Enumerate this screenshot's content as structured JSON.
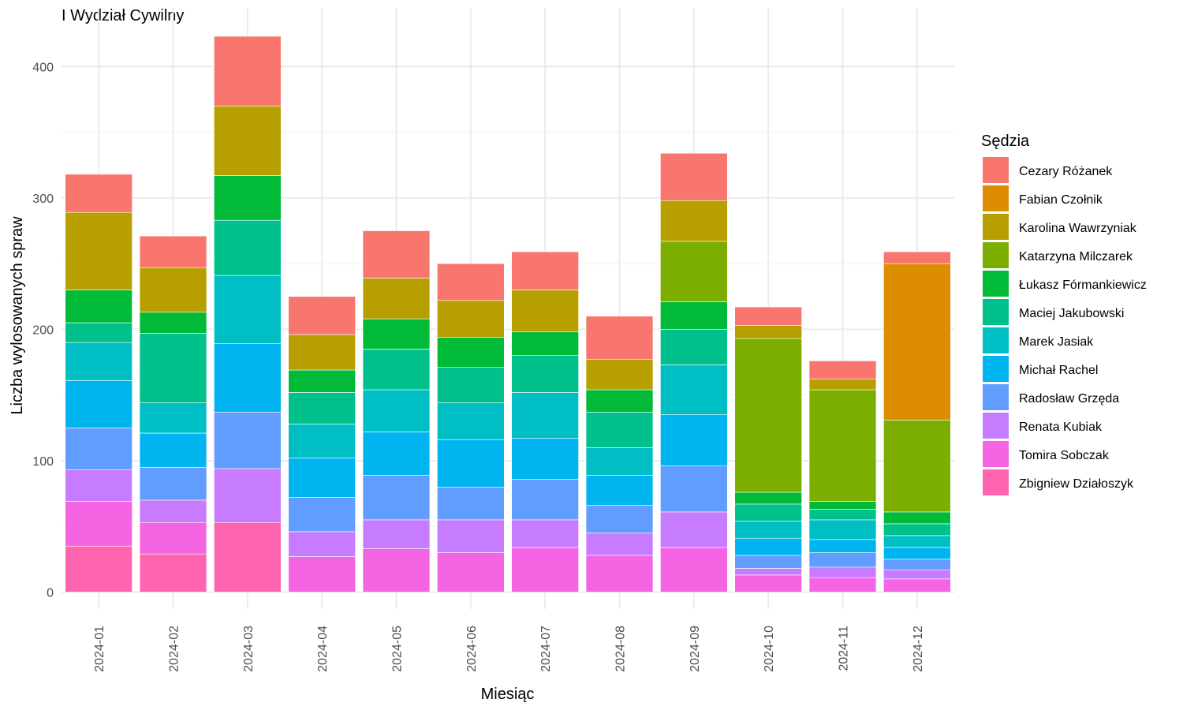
{
  "chart_data": {
    "type": "bar",
    "stacked": true,
    "title": "I Wydział Cywilny",
    "xlabel": "Miesiąc",
    "ylabel": "Liczba wylosowanych spraw",
    "ylim": [
      0,
      430
    ],
    "yticks": [
      0,
      100,
      200,
      300,
      400
    ],
    "grid": true,
    "legend_title": "Sędzia",
    "legend_position": "right",
    "categories": [
      "2024-01",
      "2024-02",
      "2024-03",
      "2024-04",
      "2024-05",
      "2024-06",
      "2024-07",
      "2024-08",
      "2024-09",
      "2024-10",
      "2024-11",
      "2024-12"
    ],
    "series": [
      {
        "name": "Cezary Różanek",
        "color": "#F8766D",
        "values": [
          29,
          24,
          53,
          29,
          36,
          28,
          29,
          33,
          36,
          14,
          14,
          9
        ]
      },
      {
        "name": "Fabian Czołnik",
        "color": "#DE8C00",
        "values": [
          0,
          0,
          0,
          0,
          0,
          0,
          0,
          0,
          0,
          0,
          0,
          119
        ]
      },
      {
        "name": "Karolina Wawrzyniak",
        "color": "#B79F00",
        "values": [
          59,
          34,
          53,
          27,
          31,
          28,
          32,
          23,
          31,
          10,
          8,
          0
        ]
      },
      {
        "name": "Katarzyna Milczarek",
        "color": "#7CAE00",
        "values": [
          0,
          0,
          0,
          0,
          0,
          0,
          0,
          0,
          46,
          117,
          85,
          70
        ]
      },
      {
        "name": "Łukasz Fórmankiewicz",
        "color": "#00BA38",
        "values": [
          25,
          16,
          34,
          17,
          23,
          23,
          18,
          17,
          21,
          9,
          6,
          9
        ]
      },
      {
        "name": "Maciej Jakubowski",
        "color": "#00C08B",
        "values": [
          15,
          53,
          42,
          24,
          31,
          27,
          28,
          27,
          27,
          13,
          8,
          9
        ]
      },
      {
        "name": "Marek Jasiak",
        "color": "#00BFC4",
        "values": [
          29,
          23,
          52,
          26,
          32,
          28,
          35,
          21,
          38,
          13,
          15,
          9
        ]
      },
      {
        "name": "Michał Rachel",
        "color": "#00B4F0",
        "values": [
          36,
          26,
          52,
          30,
          33,
          36,
          31,
          23,
          39,
          13,
          10,
          9
        ]
      },
      {
        "name": "Radosław Grzęda",
        "color": "#619CFF",
        "values": [
          32,
          25,
          43,
          26,
          34,
          25,
          31,
          21,
          35,
          10,
          11,
          8
        ]
      },
      {
        "name": "Renata Kubiak",
        "color": "#C77CFF",
        "values": [
          24,
          17,
          41,
          19,
          22,
          25,
          21,
          17,
          27,
          5,
          8,
          7
        ]
      },
      {
        "name": "Tomira Sobczak",
        "color": "#F564E3",
        "values": [
          34,
          24,
          0,
          27,
          33,
          30,
          34,
          28,
          34,
          13,
          11,
          10
        ]
      },
      {
        "name": "Zbigniew Działoszyk",
        "color": "#FF64B0",
        "values": [
          35,
          29,
          53,
          0,
          0,
          0,
          0,
          0,
          0,
          0,
          0,
          0
        ]
      }
    ]
  }
}
